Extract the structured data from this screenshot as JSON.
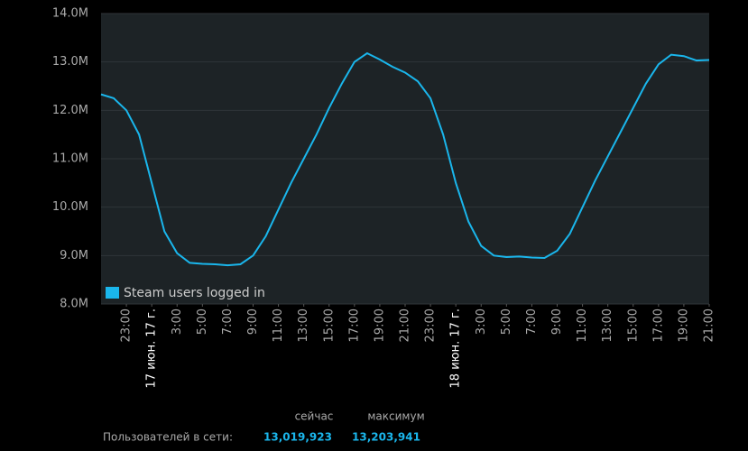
{
  "chart_data": {
    "type": "line",
    "x": [
      0,
      1,
      2,
      3,
      4,
      5,
      6,
      7,
      8,
      9,
      10,
      11,
      12,
      13,
      14,
      15,
      16,
      17,
      18,
      19,
      20,
      21,
      22,
      23,
      24,
      25,
      26,
      27,
      28,
      29,
      30,
      31,
      32,
      33,
      34,
      35,
      36,
      37,
      38,
      39,
      40,
      41,
      42,
      43,
      44,
      45,
      46,
      47,
      48
    ],
    "series": [
      {
        "name": "Steam users logged in",
        "color": "#1ab6ec",
        "values": [
          12.33,
          12.25,
          12.0,
          11.5,
          10.5,
          9.5,
          9.05,
          8.85,
          8.83,
          8.82,
          8.8,
          8.82,
          9.0,
          9.4,
          9.95,
          10.5,
          11.0,
          11.5,
          12.05,
          12.55,
          13.0,
          13.18,
          13.05,
          12.9,
          12.78,
          12.6,
          12.25,
          11.5,
          10.5,
          9.7,
          9.2,
          9.0,
          8.97,
          8.98,
          8.96,
          8.95,
          9.1,
          9.45,
          10.0,
          10.55,
          11.05,
          11.55,
          12.05,
          12.55,
          12.95,
          13.15,
          13.12,
          13.03,
          13.04
        ]
      }
    ],
    "xlim": [
      0,
      48
    ],
    "xticks": [
      {
        "value": 2,
        "label": "23:00"
      },
      {
        "value": 4,
        "label": "17 июн. 17 г.",
        "color": "#ffffff"
      },
      {
        "value": 6,
        "label": "3:00"
      },
      {
        "value": 8,
        "label": "5:00"
      },
      {
        "value": 10,
        "label": "7:00"
      },
      {
        "value": 12,
        "label": "9:00"
      },
      {
        "value": 14,
        "label": "11:00"
      },
      {
        "value": 16,
        "label": "13:00"
      },
      {
        "value": 18,
        "label": "15:00"
      },
      {
        "value": 20,
        "label": "17:00"
      },
      {
        "value": 22,
        "label": "19:00"
      },
      {
        "value": 24,
        "label": "21:00"
      },
      {
        "value": 26,
        "label": "23:00"
      },
      {
        "value": 28,
        "label": "18 июн. 17 г.",
        "color": "#ffffff"
      },
      {
        "value": 30,
        "label": "3:00"
      },
      {
        "value": 32,
        "label": "5:00"
      },
      {
        "value": 34,
        "label": "7:00"
      },
      {
        "value": 36,
        "label": "9:00"
      },
      {
        "value": 38,
        "label": "11:00"
      },
      {
        "value": 40,
        "label": "13:00"
      },
      {
        "value": 42,
        "label": "15:00"
      },
      {
        "value": 44,
        "label": "17:00"
      },
      {
        "value": 46,
        "label": "19:00"
      },
      {
        "value": 48,
        "label": "21:00"
      }
    ],
    "ylim": [
      8,
      14
    ],
    "yticks": [
      {
        "value": 8,
        "label": "8.0M"
      },
      {
        "value": 9,
        "label": "9.0M"
      },
      {
        "value": 10,
        "label": "10.0M"
      },
      {
        "value": 11,
        "label": "11.0M"
      },
      {
        "value": 12,
        "label": "12.0M"
      },
      {
        "value": 13,
        "label": "13.0M"
      },
      {
        "value": 14,
        "label": "14.0M"
      }
    ],
    "grid": true,
    "legend": "lower left"
  },
  "stats": {
    "now_label": "сейчас",
    "max_label": "максимум",
    "row_label": "Пользователей в сети:",
    "now": "13,019,923",
    "max": "13,203,941"
  }
}
